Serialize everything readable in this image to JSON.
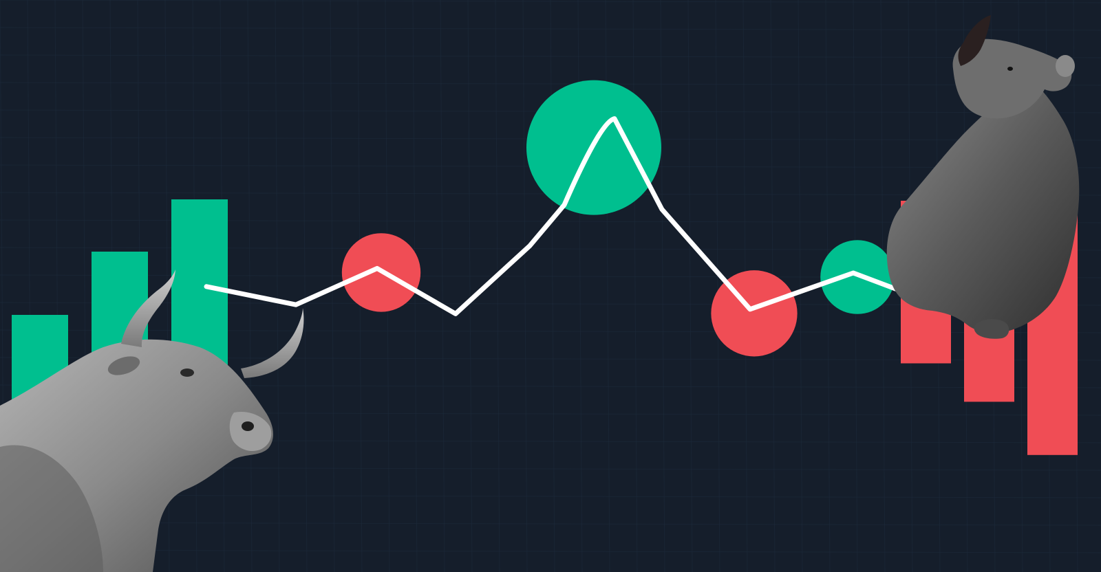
{
  "colors": {
    "background": "#151e2b",
    "grid": "#1d2a3a",
    "bull_green": "#00bf8f",
    "bear_red": "#f04d55",
    "trend_line": "#ffffff",
    "bull_statue": "#8f8f8f",
    "bear_figure": "#5e5e5e"
  },
  "illustration": {
    "bull": {
      "icon": "bull-statue-icon",
      "bars": [
        0.38,
        0.61,
        0.8
      ]
    },
    "bear": {
      "icon": "roaring-bear-icon",
      "bars": [
        0.55,
        0.68,
        0.86
      ]
    },
    "trend": {
      "values": [
        0.52,
        0.48,
        0.56,
        0.46,
        0.61,
        0.7,
        0.89,
        0.69,
        0.47,
        0.55,
        0.51
      ],
      "markers": [
        {
          "index": 2,
          "trend": "down",
          "weight": 0.4
        },
        {
          "index": 6,
          "trend": "up",
          "weight": 1.0
        },
        {
          "index": 8,
          "trend": "down",
          "weight": 0.48
        },
        {
          "index": 9,
          "trend": "up",
          "weight": 0.35
        }
      ]
    }
  }
}
